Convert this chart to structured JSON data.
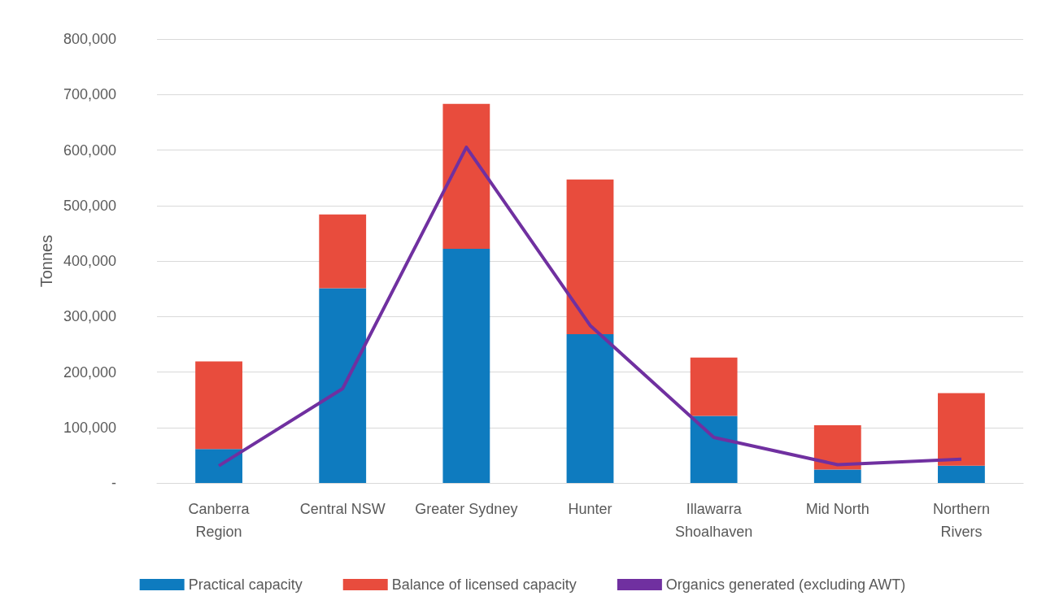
{
  "chart_data": {
    "type": "bar",
    "stacked": true,
    "ylabel": "Tonnes",
    "categories": [
      "Canberra\nRegion",
      "Central NSW",
      "Greater Sydney",
      "Hunter",
      "Illawarra\nShoalhaven",
      "Mid North",
      "Northern\nRivers"
    ],
    "series": [
      {
        "name": "Practical capacity",
        "color": "#0e7bbf",
        "values": [
          61000,
          351000,
          422000,
          268000,
          121000,
          24000,
          31000
        ]
      },
      {
        "name": "Balance of licensed capacity",
        "color": "#e84c3d",
        "values": [
          158000,
          133000,
          261000,
          279000,
          105000,
          80000,
          131000
        ]
      },
      {
        "name": "Organics generated (excluding AWT)",
        "type": "line",
        "color": "#7030a0",
        "values": [
          31000,
          170000,
          605000,
          284000,
          82000,
          33000,
          43000
        ]
      }
    ],
    "ylim": [
      0,
      800000
    ],
    "yticks": [
      {
        "value": 0,
        "label": "-"
      },
      {
        "value": 100000,
        "label": "100,000"
      },
      {
        "value": 200000,
        "label": "200,000"
      },
      {
        "value": 300000,
        "label": "300,000"
      },
      {
        "value": 400000,
        "label": "400,000"
      },
      {
        "value": 500000,
        "label": "500,000"
      },
      {
        "value": 600000,
        "label": "600,000"
      },
      {
        "value": 700000,
        "label": "700,000"
      },
      {
        "value": 800000,
        "label": "800,000"
      }
    ],
    "grid": "y",
    "legend": "bottom",
    "marker": "none"
  }
}
